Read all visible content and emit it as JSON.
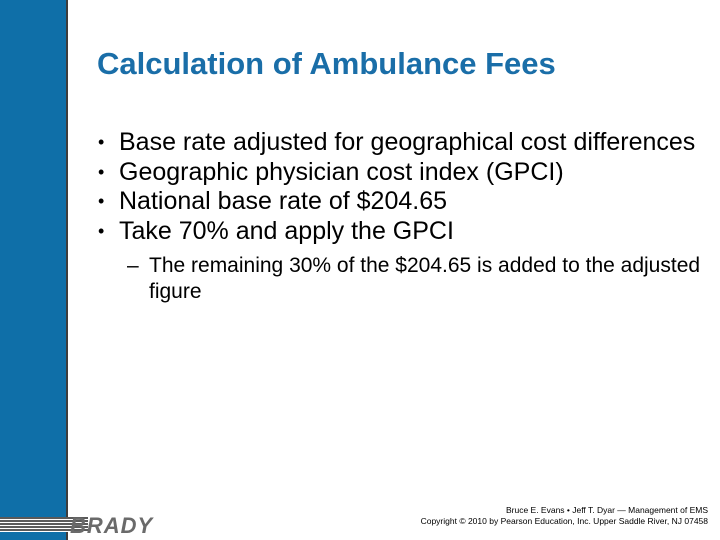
{
  "slide": {
    "title": "Calculation of Ambulance Fees",
    "bullets": [
      "Base rate adjusted for geographical cost differences",
      "Geographic physician cost index (GPCI)",
      "National base rate of $204.65",
      "Take 70% and apply the GPCI"
    ],
    "bullet_symbol": "•",
    "sub_bullet": "The remaining 30% of the $204.65 is added to the adjusted figure",
    "sub_symbol": "–"
  },
  "footer": {
    "brand": "BRADY",
    "author_line": "Bruce E. Evans • Jeff T. Dyar — Management of EMS",
    "copyright_line": "Copyright © 2010 by Pearson Education, Inc. Upper Saddle River, NJ 07458"
  },
  "colors": {
    "sidebar": "#0f6fa8",
    "title": "#1a6ea8"
  }
}
